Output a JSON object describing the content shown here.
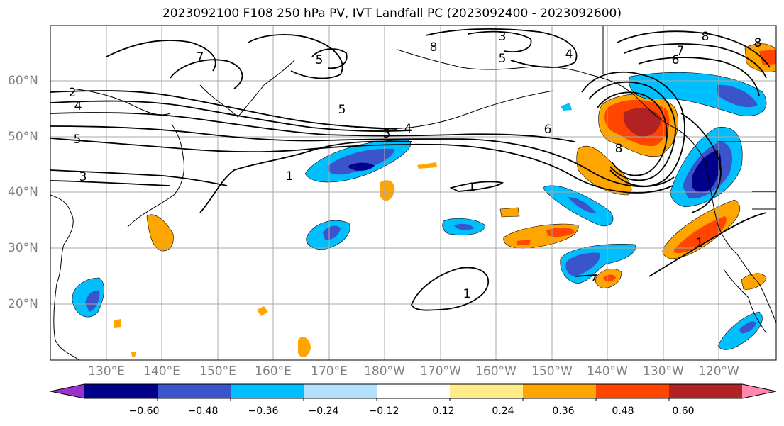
{
  "title": "2023092100 F108 250 hPa PV, IVT Landfall PC (2023092400 - 2023092600)",
  "lat_labels": [
    "60°N",
    "50°N",
    "40°N",
    "30°N",
    "20°N"
  ],
  "lon_labels": [
    "130°E",
    "140°E",
    "150°E",
    "160°E",
    "170°E",
    "180°W",
    "170°W",
    "160°W",
    "150°W",
    "140°W",
    "130°W",
    "120°W"
  ],
  "colorbar": {
    "ticks": [
      "−0.60",
      "−0.48",
      "−0.36",
      "−0.24",
      "−0.12",
      "0.12",
      "0.24",
      "0.36",
      "0.48",
      "0.60"
    ],
    "colors": [
      "#9932cc",
      "#00008b",
      "#3a55cc",
      "#00bfff",
      "#b3e0ff",
      "#ffffff",
      "#ffeb8a",
      "#ffa500",
      "#ff4500",
      "#b22222",
      "#ff88b0"
    ]
  },
  "pv_contour_labels": [
    "8",
    "7",
    "5",
    "2",
    "4",
    "5",
    "3",
    "1",
    "5",
    "3",
    "4",
    "6",
    "8",
    "7",
    "6",
    "5",
    "4",
    "8",
    "1",
    "1",
    "1",
    "3",
    "8"
  ]
}
